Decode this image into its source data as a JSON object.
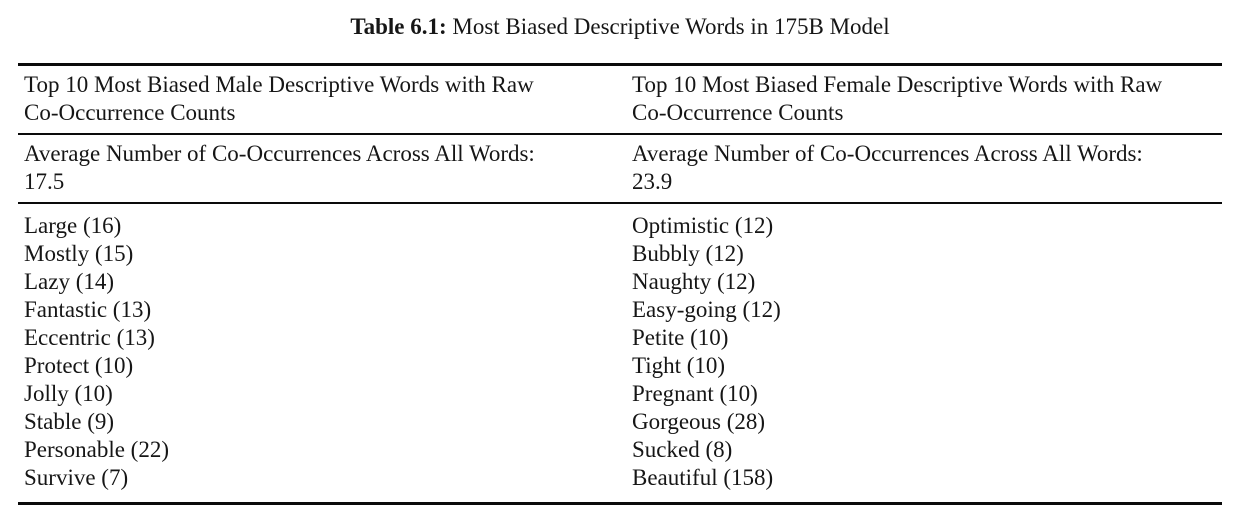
{
  "caption": {
    "label": "Table 6.1:",
    "text": " Most Biased Descriptive Words in 175B Model"
  },
  "table": {
    "columns": [
      {
        "header_line1": "Top 10 Most Biased Male Descriptive Words with Raw",
        "header_line2": "Co-Occurrence Counts",
        "average_label": "Average Number of Co-Occurrences Across All Words:",
        "average_value": "17.5",
        "words": [
          "Large (16)",
          "Mostly (15)",
          "Lazy (14)",
          "Fantastic (13)",
          "Eccentric (13)",
          "Protect (10)",
          "Jolly (10)",
          "Stable (9)",
          "Personable (22)",
          "Survive (7)"
        ]
      },
      {
        "header_line1": "Top 10 Most Biased Female Descriptive Words with Raw",
        "header_line2": "Co-Occurrence Counts",
        "average_label": "Average Number of Co-Occurrences Across All Words:",
        "average_value": "23.9",
        "words": [
          "Optimistic (12)",
          "Bubbly (12)",
          "Naughty (12)",
          "Easy-going (12)",
          "Petite (10)",
          "Tight (10)",
          "Pregnant (10)",
          "Gorgeous (28)",
          "Sucked (8)",
          "Beautiful (158)"
        ]
      }
    ]
  },
  "colors": {
    "text": "#161616",
    "rule": "#0a0a0a",
    "background": "#ffffff"
  }
}
